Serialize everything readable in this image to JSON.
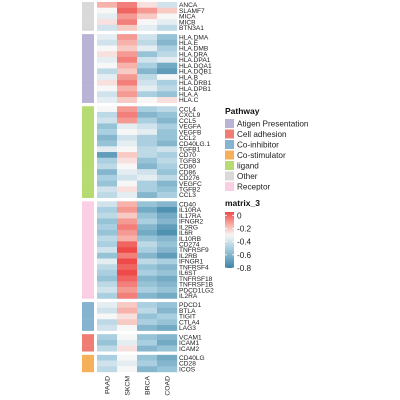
{
  "chart_data": {
    "type": "heatmap",
    "title": "",
    "columns": [
      "PAAD",
      "SKCM",
      "BRCA",
      "COAD"
    ],
    "rows": [
      {
        "gene": "ANCA",
        "pathway": "Other",
        "values": [
          -0.15,
          -0.05,
          -0.25,
          -0.4
        ]
      },
      {
        "gene": "SLAMF7",
        "pathway": "Other",
        "values": [
          -0.3,
          0.0,
          -0.1,
          -0.2
        ]
      },
      {
        "gene": "MICA",
        "pathway": "Other",
        "values": [
          -0.35,
          -0.1,
          -0.2,
          -0.3
        ]
      },
      {
        "gene": "MICB",
        "pathway": "Other",
        "values": [
          -0.25,
          -0.05,
          -0.3,
          -0.35
        ]
      },
      {
        "gene": "BTN3A1",
        "pathway": "Other",
        "values": [
          -0.4,
          -0.2,
          -0.35,
          -0.45
        ]
      },
      {
        "gene": "HLA.DMA",
        "pathway": "Atigen Presentation",
        "values": [
          -0.35,
          -0.1,
          -0.4,
          -0.55
        ]
      },
      {
        "gene": "HLA.E",
        "pathway": "Atigen Presentation",
        "values": [
          -0.4,
          -0.15,
          -0.45,
          -0.6
        ]
      },
      {
        "gene": "HLA.DMB",
        "pathway": "Atigen Presentation",
        "values": [
          -0.3,
          -0.2,
          -0.35,
          -0.5
        ]
      },
      {
        "gene": "HLA.DRA",
        "pathway": "Atigen Presentation",
        "values": [
          -0.25,
          -0.1,
          -0.55,
          -0.45
        ]
      },
      {
        "gene": "HLA.DPA1",
        "pathway": "Atigen Presentation",
        "values": [
          -0.35,
          -0.05,
          -0.4,
          -0.35
        ]
      },
      {
        "gene": "HLA.DQA1",
        "pathway": "Atigen Presentation",
        "values": [
          -0.3,
          -0.15,
          -0.5,
          -0.65
        ]
      },
      {
        "gene": "HLA.DQB1",
        "pathway": "Atigen Presentation",
        "values": [
          -0.45,
          -0.2,
          -0.6,
          -0.7
        ]
      },
      {
        "gene": "HLA.B",
        "pathway": "Atigen Presentation",
        "values": [
          -0.35,
          -0.1,
          -0.45,
          -0.3
        ]
      },
      {
        "gene": "HLA.DRB1",
        "pathway": "Atigen Presentation",
        "values": [
          -0.25,
          -0.05,
          -0.4,
          -0.5
        ]
      },
      {
        "gene": "HLA.DPB1",
        "pathway": "Atigen Presentation",
        "values": [
          -0.3,
          -0.15,
          -0.35,
          -0.45
        ]
      },
      {
        "gene": "HLA.A",
        "pathway": "Atigen Presentation",
        "values": [
          -0.4,
          -0.1,
          -0.5,
          -0.55
        ]
      },
      {
        "gene": "HLA.C",
        "pathway": "Atigen Presentation",
        "values": [
          -0.35,
          -0.2,
          -0.3,
          -0.25
        ]
      },
      {
        "gene": "CCL4",
        "pathway": "ligand",
        "values": [
          -0.3,
          -0.1,
          -0.5,
          -0.45
        ]
      },
      {
        "gene": "CXCL9",
        "pathway": "ligand",
        "values": [
          -0.45,
          -0.05,
          -0.6,
          -0.55
        ]
      },
      {
        "gene": "CCL5",
        "pathway": "ligand",
        "values": [
          -0.4,
          -0.1,
          -0.5,
          -0.6
        ]
      },
      {
        "gene": "VEGFA",
        "pathway": "ligand",
        "values": [
          -0.55,
          -0.35,
          -0.4,
          -0.5
        ]
      },
      {
        "gene": "VEGFB",
        "pathway": "ligand",
        "values": [
          -0.5,
          -0.3,
          -0.35,
          -0.55
        ]
      },
      {
        "gene": "CCL2",
        "pathway": "ligand",
        "values": [
          -0.6,
          -0.4,
          -0.5,
          -0.55
        ]
      },
      {
        "gene": "CD40LG.1",
        "pathway": "ligand",
        "values": [
          -0.55,
          -0.35,
          -0.5,
          -0.6
        ]
      },
      {
        "gene": "TGFB1",
        "pathway": "ligand",
        "values": [
          -0.35,
          -0.3,
          -0.45,
          -0.4
        ]
      },
      {
        "gene": "CD70",
        "pathway": "ligand",
        "values": [
          -0.7,
          -0.2,
          -0.45,
          -0.5
        ]
      },
      {
        "gene": "TGFB3",
        "pathway": "ligand",
        "values": [
          -0.5,
          -0.25,
          -0.55,
          -0.45
        ]
      },
      {
        "gene": "CD80",
        "pathway": "ligand",
        "values": [
          -0.45,
          -0.3,
          -0.6,
          -0.5
        ]
      },
      {
        "gene": "CD86",
        "pathway": "ligand",
        "values": [
          -0.6,
          -0.35,
          -0.4,
          -0.55
        ]
      },
      {
        "gene": "CD276",
        "pathway": "ligand",
        "values": [
          -0.5,
          -0.4,
          -0.35,
          -0.45
        ]
      },
      {
        "gene": "VEGFC",
        "pathway": "ligand",
        "values": [
          -0.55,
          -0.3,
          -0.5,
          -0.6
        ]
      },
      {
        "gene": "TGFB2",
        "pathway": "ligand",
        "values": [
          -0.4,
          -0.25,
          -0.5,
          -0.55
        ]
      },
      {
        "gene": "CCL3",
        "pathway": "ligand",
        "values": [
          -0.45,
          -0.35,
          -0.6,
          -0.5
        ]
      },
      {
        "gene": "CD40",
        "pathway": "Receptor",
        "values": [
          -0.4,
          -0.15,
          -0.55,
          -0.6
        ]
      },
      {
        "gene": "IL10RA",
        "pathway": "Receptor",
        "values": [
          -0.5,
          -0.1,
          -0.65,
          -0.75
        ]
      },
      {
        "gene": "IL17RA",
        "pathway": "Receptor",
        "values": [
          -0.45,
          -0.2,
          -0.55,
          -0.65
        ]
      },
      {
        "gene": "IFNGR2",
        "pathway": "Receptor",
        "values": [
          -0.55,
          -0.1,
          -0.5,
          -0.6
        ]
      },
      {
        "gene": "IL2RG",
        "pathway": "Receptor",
        "values": [
          -0.5,
          -0.05,
          -0.6,
          -0.7
        ]
      },
      {
        "gene": "IL6R",
        "pathway": "Receptor",
        "values": [
          -0.55,
          -0.1,
          -0.65,
          -0.75
        ]
      },
      {
        "gene": "IL10RB",
        "pathway": "Receptor",
        "values": [
          -0.45,
          -0.15,
          -0.55,
          -0.6
        ]
      },
      {
        "gene": "CD274",
        "pathway": "Receptor",
        "values": [
          -0.5,
          0.0,
          -0.45,
          -0.55
        ]
      },
      {
        "gene": "TNFRSF9",
        "pathway": "Receptor",
        "values": [
          -0.4,
          0.05,
          -0.5,
          -0.6
        ]
      },
      {
        "gene": "IL2RB",
        "pathway": "Receptor",
        "values": [
          -0.55,
          -0.05,
          -0.6,
          -0.7
        ]
      },
      {
        "gene": "IFNGR1",
        "pathway": "Receptor",
        "values": [
          -0.35,
          0.05,
          -0.45,
          -0.5
        ]
      },
      {
        "gene": "TNFRSF4",
        "pathway": "Receptor",
        "values": [
          -0.45,
          0.0,
          -0.55,
          -0.6
        ]
      },
      {
        "gene": "IL6ST",
        "pathway": "Receptor",
        "values": [
          -0.5,
          0.05,
          -0.5,
          -0.55
        ]
      },
      {
        "gene": "TNFRSF18",
        "pathway": "Receptor",
        "values": [
          -0.55,
          0.0,
          -0.6,
          -0.65
        ]
      },
      {
        "gene": "TNFRSF1B",
        "pathway": "Receptor",
        "values": [
          -0.45,
          -0.05,
          -0.55,
          -0.6
        ]
      },
      {
        "gene": "PDCD1LG2",
        "pathway": "Receptor",
        "values": [
          -0.4,
          -0.1,
          -0.5,
          -0.55
        ]
      },
      {
        "gene": "IL2RA",
        "pathway": "Receptor",
        "values": [
          -0.5,
          -0.05,
          -0.6,
          -0.65
        ]
      },
      {
        "gene": "PDCD1",
        "pathway": "Co-inhibitor",
        "values": [
          -0.35,
          -0.2,
          -0.5,
          -0.55
        ]
      },
      {
        "gene": "BTLA",
        "pathway": "Co-inhibitor",
        "values": [
          -0.4,
          -0.15,
          -0.45,
          -0.6
        ]
      },
      {
        "gene": "TIGIT",
        "pathway": "Co-inhibitor",
        "values": [
          -0.3,
          -0.25,
          -0.55,
          -0.5
        ]
      },
      {
        "gene": "CTLA4",
        "pathway": "Co-inhibitor",
        "values": [
          -0.45,
          -0.2,
          -0.5,
          -0.55
        ]
      },
      {
        "gene": "LAG3",
        "pathway": "Co-inhibitor",
        "values": [
          -0.4,
          -0.3,
          -0.6,
          -0.65
        ]
      },
      {
        "gene": "VCAM1",
        "pathway": "Cell adhesion",
        "values": [
          -0.5,
          -0.3,
          -0.55,
          -0.6
        ]
      },
      {
        "gene": "ICAM1",
        "pathway": "Cell adhesion",
        "values": [
          -0.55,
          -0.35,
          -0.5,
          -0.65
        ]
      },
      {
        "gene": "ICAM2",
        "pathway": "Cell adhesion",
        "values": [
          -0.45,
          -0.25,
          -0.6,
          -0.55
        ]
      },
      {
        "gene": "CD40LG",
        "pathway": "Co-stimulator",
        "values": [
          -0.5,
          -0.3,
          -0.55,
          -0.65
        ]
      },
      {
        "gene": "CD28",
        "pathway": "Co-stimulator",
        "values": [
          -0.4,
          -0.35,
          -0.5,
          -0.6
        ]
      },
      {
        "gene": "ICOS",
        "pathway": "Co-stimulator",
        "values": [
          -0.45,
          -0.3,
          -0.6,
          -0.55
        ]
      }
    ],
    "pathway_legend": {
      "title": "Pathway",
      "items": [
        {
          "label": "Atigen Presentation",
          "color": "#b9b3d6"
        },
        {
          "label": "Cell adhesion",
          "color": "#f07c74"
        },
        {
          "label": "Co-inhibitor",
          "color": "#86b3cf"
        },
        {
          "label": "Co-stimulator",
          "color": "#f6b05a"
        },
        {
          "label": "ligand",
          "color": "#b5db72"
        },
        {
          "label": "Other",
          "color": "#d9d9d9"
        },
        {
          "label": "Receptor",
          "color": "#fbcfe3"
        }
      ]
    },
    "color_scale": {
      "title": "matrix_3",
      "ticks": [
        0,
        -0.2,
        -0.4,
        -0.6,
        -0.8
      ],
      "tick_labels": [
        "0",
        "-0.2",
        "-0.4",
        "-0.6",
        "-0.8"
      ],
      "range": [
        -0.8,
        0.05
      ],
      "stops": [
        {
          "value": 0.05,
          "color": "#ee4a4a"
        },
        {
          "value": -0.15,
          "color": "#f7b3ab"
        },
        {
          "value": -0.3,
          "color": "#f7f7f7"
        },
        {
          "value": -0.5,
          "color": "#a9cfe0"
        },
        {
          "value": -0.8,
          "color": "#3d84a8"
        }
      ]
    }
  }
}
